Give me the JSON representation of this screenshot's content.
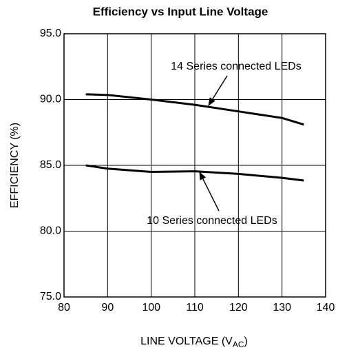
{
  "chart_data": {
    "type": "line",
    "title": "Efficiency vs Input Line Voltage",
    "xlabel": [
      "LINE VOLTAGE (V",
      "AC",
      ")"
    ],
    "ylabel": "EFFICIENCY (%)",
    "x": [
      85,
      90,
      100,
      110,
      120,
      130,
      135
    ],
    "series": [
      {
        "name": "14 Series connected LEDs",
        "color": "#000000",
        "values": [
          90.4,
          90.35,
          90.0,
          89.6,
          89.1,
          88.6,
          88.1
        ]
      },
      {
        "name": "10 Series connected LEDs",
        "color": "#000000",
        "values": [
          85.0,
          84.75,
          84.5,
          84.55,
          84.35,
          84.05,
          83.85
        ]
      }
    ],
    "xlim": [
      80,
      140
    ],
    "xticks": [
      80,
      90,
      100,
      110,
      120,
      130,
      140
    ],
    "ylim": [
      75,
      95
    ],
    "yticks": [
      {
        "value": 75,
        "label": "75.0"
      },
      {
        "value": 80,
        "label": "80.0"
      },
      {
        "value": 85,
        "label": "85.0"
      },
      {
        "value": 90,
        "label": "90.0"
      },
      {
        "value": 95,
        "label": "95.0"
      }
    ],
    "grid": true
  }
}
